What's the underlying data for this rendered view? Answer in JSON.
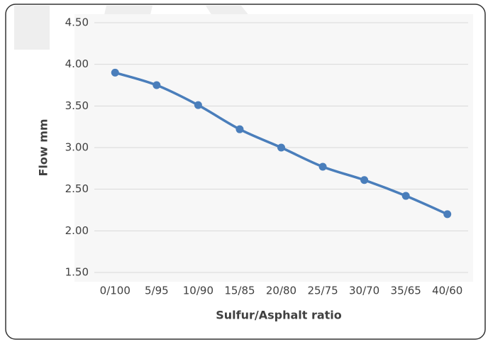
{
  "chart_data": {
    "type": "line",
    "x_label": "Sulfur/Asphalt ratio",
    "y_label": "Flow mm",
    "categories": [
      "0/100",
      "5/95",
      "10/90",
      "15/85",
      "20/80",
      "25/75",
      "30/70",
      "35/65",
      "40/60"
    ],
    "series": [
      {
        "name": "Flow",
        "color": "#4a7ebb",
        "values": [
          3.9,
          3.75,
          3.51,
          3.22,
          3.0,
          2.77,
          2.61,
          2.42,
          2.2
        ]
      }
    ],
    "ylim": [
      1.5,
      4.5
    ],
    "yticks": [
      {
        "value": 1.5,
        "label": "1.50"
      },
      {
        "value": 2,
        "label": "2.00"
      },
      {
        "value": 2.5,
        "label": "2.50"
      },
      {
        "value": 3,
        "label": "3.00"
      },
      {
        "value": 3.5,
        "label": "3.50"
      },
      {
        "value": 4,
        "label": "4.00"
      },
      {
        "value": 4.5,
        "label": "4.50"
      }
    ],
    "grid": true
  }
}
